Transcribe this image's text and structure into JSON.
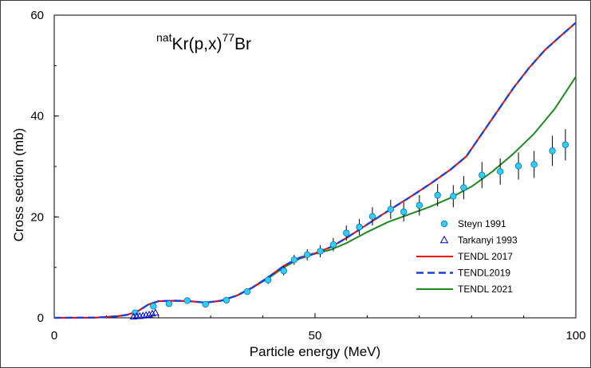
{
  "chart_data": {
    "type": "scatter",
    "title_parts": {
      "sup1": "nat",
      "main": "Kr(p,x)",
      "sup2": "77",
      "end": "Br"
    },
    "xlabel": "Particle energy (MeV)",
    "ylabel": "Cross section (mb)",
    "xlim": [
      0,
      100
    ],
    "ylim": [
      0,
      60
    ],
    "x_ticks": [
      0,
      50,
      100
    ],
    "y_ticks": [
      0,
      20,
      40,
      60
    ],
    "grid": false,
    "legend_position": "bottom-right",
    "series": [
      {
        "name": "Steyn 1991",
        "kind": "points",
        "marker": "circle",
        "color": "#33ccff",
        "points": [
          {
            "x": 15.5,
            "y": 1.0,
            "err": 0.3
          },
          {
            "x": 19.0,
            "y": 2.3,
            "err": 0.4
          },
          {
            "x": 22.0,
            "y": 2.8,
            "err": 0.4
          },
          {
            "x": 25.5,
            "y": 3.4,
            "err": 0.4
          },
          {
            "x": 29.0,
            "y": 2.7,
            "err": 0.4
          },
          {
            "x": 33.0,
            "y": 3.5,
            "err": 0.4
          },
          {
            "x": 37.0,
            "y": 5.2,
            "err": 0.5
          },
          {
            "x": 41.0,
            "y": 7.5,
            "err": 0.8
          },
          {
            "x": 44.0,
            "y": 9.3,
            "err": 0.9
          },
          {
            "x": 46.0,
            "y": 11.5,
            "err": 1.0
          },
          {
            "x": 48.5,
            "y": 12.5,
            "err": 1.1
          },
          {
            "x": 51.0,
            "y": 13.2,
            "err": 1.2
          },
          {
            "x": 53.5,
            "y": 14.5,
            "err": 1.3
          },
          {
            "x": 56.0,
            "y": 16.8,
            "err": 1.5
          },
          {
            "x": 58.5,
            "y": 18.0,
            "err": 1.6
          },
          {
            "x": 61.0,
            "y": 20.1,
            "err": 1.8
          },
          {
            "x": 64.5,
            "y": 21.5,
            "err": 1.9
          },
          {
            "x": 67.0,
            "y": 21.0,
            "err": 1.9
          },
          {
            "x": 70.0,
            "y": 22.3,
            "err": 2.0
          },
          {
            "x": 73.5,
            "y": 24.3,
            "err": 2.2
          },
          {
            "x": 76.5,
            "y": 24.1,
            "err": 2.2
          },
          {
            "x": 78.5,
            "y": 25.8,
            "err": 2.3
          },
          {
            "x": 82.0,
            "y": 28.3,
            "err": 2.6
          },
          {
            "x": 85.5,
            "y": 29.0,
            "err": 2.6
          },
          {
            "x": 89.0,
            "y": 30.1,
            "err": 2.7
          },
          {
            "x": 92.0,
            "y": 30.4,
            "err": 2.7
          },
          {
            "x": 95.5,
            "y": 33.1,
            "err": 3.0
          },
          {
            "x": 98.0,
            "y": 34.3,
            "err": 3.1
          }
        ]
      },
      {
        "name": "Tarkanyi 1993",
        "kind": "points",
        "marker": "triangle",
        "color": "#0000cc",
        "points": [
          {
            "x": 15.2,
            "y": 0.2
          },
          {
            "x": 15.8,
            "y": 0.3
          },
          {
            "x": 16.4,
            "y": 0.3
          },
          {
            "x": 17.0,
            "y": 0.4
          },
          {
            "x": 17.6,
            "y": 0.5
          },
          {
            "x": 18.2,
            "y": 0.6
          },
          {
            "x": 18.8,
            "y": 0.8
          },
          {
            "x": 19.4,
            "y": 1.0
          }
        ]
      },
      {
        "name": "TENDL 2017",
        "kind": "line",
        "dash": "solid",
        "color": "#ff0000",
        "points": [
          {
            "x": 0,
            "y": 0
          },
          {
            "x": 8,
            "y": 0.05
          },
          {
            "x": 12,
            "y": 0.3
          },
          {
            "x": 14,
            "y": 0.6
          },
          {
            "x": 16,
            "y": 1.3
          },
          {
            "x": 18,
            "y": 2.6
          },
          {
            "x": 20,
            "y": 3.3
          },
          {
            "x": 23,
            "y": 3.4
          },
          {
            "x": 26,
            "y": 3.3
          },
          {
            "x": 29,
            "y": 3.0
          },
          {
            "x": 32,
            "y": 3.4
          },
          {
            "x": 35,
            "y": 4.4
          },
          {
            "x": 38,
            "y": 6.0
          },
          {
            "x": 41,
            "y": 8.0
          },
          {
            "x": 44,
            "y": 10.3
          },
          {
            "x": 47,
            "y": 11.9
          },
          {
            "x": 50,
            "y": 12.8
          },
          {
            "x": 53,
            "y": 14.0
          },
          {
            "x": 56,
            "y": 15.8
          },
          {
            "x": 60,
            "y": 18.5
          },
          {
            "x": 64,
            "y": 21.2
          },
          {
            "x": 68,
            "y": 23.8
          },
          {
            "x": 72,
            "y": 26.5
          },
          {
            "x": 76,
            "y": 29.4
          },
          {
            "x": 79,
            "y": 32.0
          },
          {
            "x": 82,
            "y": 36.5
          },
          {
            "x": 85,
            "y": 41.0
          },
          {
            "x": 88,
            "y": 45.5
          },
          {
            "x": 91,
            "y": 49.5
          },
          {
            "x": 94,
            "y": 53.0
          },
          {
            "x": 97,
            "y": 55.8
          },
          {
            "x": 100,
            "y": 58.5
          }
        ]
      },
      {
        "name": "TENDL2019",
        "kind": "line",
        "dash": "dashed",
        "color": "#1f3fd8",
        "points": [
          {
            "x": 0,
            "y": 0
          },
          {
            "x": 8,
            "y": 0.05
          },
          {
            "x": 12,
            "y": 0.3
          },
          {
            "x": 14,
            "y": 0.6
          },
          {
            "x": 16,
            "y": 1.3
          },
          {
            "x": 18,
            "y": 2.6
          },
          {
            "x": 20,
            "y": 3.3
          },
          {
            "x": 23,
            "y": 3.4
          },
          {
            "x": 26,
            "y": 3.3
          },
          {
            "x": 29,
            "y": 3.0
          },
          {
            "x": 32,
            "y": 3.4
          },
          {
            "x": 35,
            "y": 4.4
          },
          {
            "x": 38,
            "y": 6.0
          },
          {
            "x": 41,
            "y": 8.0
          },
          {
            "x": 44,
            "y": 10.3
          },
          {
            "x": 47,
            "y": 11.9
          },
          {
            "x": 50,
            "y": 12.8
          },
          {
            "x": 53,
            "y": 14.0
          },
          {
            "x": 56,
            "y": 15.8
          },
          {
            "x": 60,
            "y": 18.5
          },
          {
            "x": 64,
            "y": 21.2
          },
          {
            "x": 68,
            "y": 23.8
          },
          {
            "x": 72,
            "y": 26.5
          },
          {
            "x": 76,
            "y": 29.4
          },
          {
            "x": 79,
            "y": 32.0
          },
          {
            "x": 82,
            "y": 36.5
          },
          {
            "x": 85,
            "y": 41.0
          },
          {
            "x": 88,
            "y": 45.5
          },
          {
            "x": 91,
            "y": 49.5
          },
          {
            "x": 94,
            "y": 53.0
          },
          {
            "x": 97,
            "y": 55.8
          },
          {
            "x": 100,
            "y": 58.5
          }
        ]
      },
      {
        "name": "TENDL 2021",
        "kind": "line",
        "dash": "solid",
        "color": "#1e8a1e",
        "points": [
          {
            "x": 0,
            "y": 0
          },
          {
            "x": 8,
            "y": 0.05
          },
          {
            "x": 12,
            "y": 0.3
          },
          {
            "x": 14,
            "y": 0.6
          },
          {
            "x": 16,
            "y": 1.3
          },
          {
            "x": 18,
            "y": 2.6
          },
          {
            "x": 20,
            "y": 3.3
          },
          {
            "x": 23,
            "y": 3.4
          },
          {
            "x": 26,
            "y": 3.3
          },
          {
            "x": 29,
            "y": 3.0
          },
          {
            "x": 32,
            "y": 3.4
          },
          {
            "x": 35,
            "y": 4.4
          },
          {
            "x": 38,
            "y": 6.0
          },
          {
            "x": 41,
            "y": 7.8
          },
          {
            "x": 44,
            "y": 10.0
          },
          {
            "x": 47,
            "y": 11.7
          },
          {
            "x": 50,
            "y": 12.7
          },
          {
            "x": 53,
            "y": 13.5
          },
          {
            "x": 56,
            "y": 14.8
          },
          {
            "x": 60,
            "y": 17.0
          },
          {
            "x": 64,
            "y": 19.0
          },
          {
            "x": 68,
            "y": 20.5
          },
          {
            "x": 72,
            "y": 22.0
          },
          {
            "x": 76,
            "y": 23.8
          },
          {
            "x": 80,
            "y": 26.0
          },
          {
            "x": 84,
            "y": 29.0
          },
          {
            "x": 88,
            "y": 32.5
          },
          {
            "x": 92,
            "y": 36.5
          },
          {
            "x": 96,
            "y": 41.5
          },
          {
            "x": 100,
            "y": 47.8
          }
        ]
      }
    ]
  }
}
